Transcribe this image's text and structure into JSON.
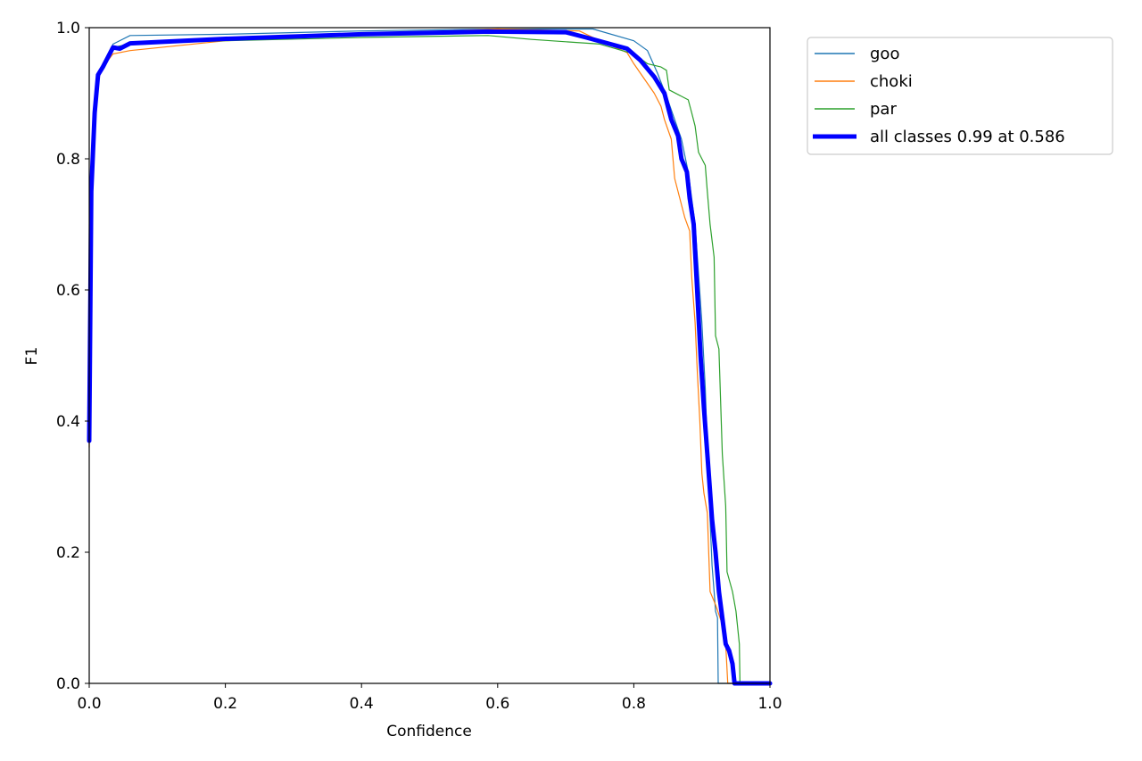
{
  "chart_data": {
    "type": "line",
    "title": "",
    "xlabel": "Confidence",
    "ylabel": "F1",
    "xlim": [
      0.0,
      1.0
    ],
    "ylim": [
      0.0,
      1.0
    ],
    "xticks": [
      "0.0",
      "0.2",
      "0.4",
      "0.6",
      "0.8",
      "1.0"
    ],
    "yticks": [
      "0.0",
      "0.2",
      "0.4",
      "0.6",
      "0.8",
      "1.0"
    ],
    "grid": false,
    "legend_position": "outside upper right",
    "series": [
      {
        "name": "goo",
        "color": "#1f77b4",
        "linewidth": 1.2,
        "points": [
          [
            0.0,
            0.37
          ],
          [
            0.003,
            0.75
          ],
          [
            0.008,
            0.87
          ],
          [
            0.013,
            0.93
          ],
          [
            0.02,
            0.945
          ],
          [
            0.035,
            0.975
          ],
          [
            0.06,
            0.988
          ],
          [
            0.2,
            0.99
          ],
          [
            0.4,
            0.995
          ],
          [
            0.6,
            0.998
          ],
          [
            0.74,
            0.998
          ],
          [
            0.8,
            0.98
          ],
          [
            0.82,
            0.965
          ],
          [
            0.835,
            0.93
          ],
          [
            0.85,
            0.89
          ],
          [
            0.87,
            0.83
          ],
          [
            0.88,
            0.78
          ],
          [
            0.89,
            0.7
          ],
          [
            0.9,
            0.55
          ],
          [
            0.905,
            0.45
          ],
          [
            0.91,
            0.3
          ],
          [
            0.915,
            0.18
          ],
          [
            0.918,
            0.14
          ],
          [
            0.92,
            0.11
          ],
          [
            0.923,
            0.1
          ],
          [
            0.924,
            0.0
          ],
          [
            1.0,
            0.0
          ]
        ]
      },
      {
        "name": "choki",
        "color": "#ff7f0e",
        "linewidth": 1.2,
        "points": [
          [
            0.0,
            0.36
          ],
          [
            0.003,
            0.74
          ],
          [
            0.008,
            0.86
          ],
          [
            0.013,
            0.92
          ],
          [
            0.02,
            0.94
          ],
          [
            0.035,
            0.96
          ],
          [
            0.06,
            0.965
          ],
          [
            0.2,
            0.98
          ],
          [
            0.4,
            0.99
          ],
          [
            0.6,
            0.998
          ],
          [
            0.72,
            0.995
          ],
          [
            0.74,
            0.985
          ],
          [
            0.79,
            0.962
          ],
          [
            0.8,
            0.945
          ],
          [
            0.81,
            0.93
          ],
          [
            0.82,
            0.915
          ],
          [
            0.83,
            0.9
          ],
          [
            0.84,
            0.88
          ],
          [
            0.845,
            0.86
          ],
          [
            0.855,
            0.83
          ],
          [
            0.86,
            0.77
          ],
          [
            0.87,
            0.73
          ],
          [
            0.875,
            0.71
          ],
          [
            0.882,
            0.69
          ],
          [
            0.885,
            0.62
          ],
          [
            0.89,
            0.55
          ],
          [
            0.893,
            0.48
          ],
          [
            0.897,
            0.4
          ],
          [
            0.9,
            0.32
          ],
          [
            0.903,
            0.29
          ],
          [
            0.908,
            0.26
          ],
          [
            0.912,
            0.14
          ],
          [
            0.92,
            0.12
          ],
          [
            0.93,
            0.09
          ],
          [
            0.935,
            0.06
          ],
          [
            0.938,
            0.0
          ],
          [
            1.0,
            0.0
          ]
        ]
      },
      {
        "name": "par",
        "color": "#2ca02c",
        "linewidth": 1.2,
        "points": [
          [
            0.0,
            0.37
          ],
          [
            0.003,
            0.75
          ],
          [
            0.008,
            0.87
          ],
          [
            0.013,
            0.93
          ],
          [
            0.02,
            0.945
          ],
          [
            0.035,
            0.97
          ],
          [
            0.06,
            0.975
          ],
          [
            0.2,
            0.98
          ],
          [
            0.4,
            0.985
          ],
          [
            0.586,
            0.988
          ],
          [
            0.65,
            0.982
          ],
          [
            0.75,
            0.975
          ],
          [
            0.8,
            0.96
          ],
          [
            0.82,
            0.945
          ],
          [
            0.84,
            0.94
          ],
          [
            0.848,
            0.935
          ],
          [
            0.852,
            0.905
          ],
          [
            0.88,
            0.89
          ],
          [
            0.885,
            0.87
          ],
          [
            0.89,
            0.85
          ],
          [
            0.895,
            0.81
          ],
          [
            0.905,
            0.79
          ],
          [
            0.908,
            0.75
          ],
          [
            0.912,
            0.7
          ],
          [
            0.918,
            0.65
          ],
          [
            0.92,
            0.53
          ],
          [
            0.925,
            0.51
          ],
          [
            0.93,
            0.35
          ],
          [
            0.935,
            0.27
          ],
          [
            0.937,
            0.17
          ],
          [
            0.945,
            0.14
          ],
          [
            0.95,
            0.11
          ],
          [
            0.955,
            0.06
          ],
          [
            0.956,
            0.0
          ],
          [
            1.0,
            0.0
          ]
        ]
      },
      {
        "name": "all classes 0.99 at 0.586",
        "color": "#0000ff",
        "linewidth": 5,
        "points": [
          [
            0.0,
            0.37
          ],
          [
            0.003,
            0.75
          ],
          [
            0.008,
            0.87
          ],
          [
            0.013,
            0.928
          ],
          [
            0.02,
            0.94
          ],
          [
            0.035,
            0.97
          ],
          [
            0.045,
            0.968
          ],
          [
            0.06,
            0.976
          ],
          [
            0.2,
            0.983
          ],
          [
            0.4,
            0.99
          ],
          [
            0.586,
            0.994
          ],
          [
            0.7,
            0.993
          ],
          [
            0.73,
            0.985
          ],
          [
            0.79,
            0.968
          ],
          [
            0.81,
            0.95
          ],
          [
            0.83,
            0.925
          ],
          [
            0.845,
            0.9
          ],
          [
            0.855,
            0.86
          ],
          [
            0.865,
            0.835
          ],
          [
            0.87,
            0.8
          ],
          [
            0.878,
            0.78
          ],
          [
            0.882,
            0.74
          ],
          [
            0.888,
            0.7
          ],
          [
            0.893,
            0.6
          ],
          [
            0.898,
            0.5
          ],
          [
            0.903,
            0.42
          ],
          [
            0.908,
            0.35
          ],
          [
            0.915,
            0.25
          ],
          [
            0.92,
            0.2
          ],
          [
            0.925,
            0.14
          ],
          [
            0.93,
            0.1
          ],
          [
            0.935,
            0.06
          ],
          [
            0.94,
            0.05
          ],
          [
            0.945,
            0.03
          ],
          [
            0.948,
            0.0
          ],
          [
            1.0,
            0.0
          ]
        ]
      }
    ]
  },
  "legend": {
    "items": [
      {
        "label": "goo",
        "color": "#1f77b4",
        "width": 1.5
      },
      {
        "label": "choki",
        "color": "#ff7f0e",
        "width": 1.5
      },
      {
        "label": "par",
        "color": "#2ca02c",
        "width": 1.5
      },
      {
        "label": "all classes 0.99 at 0.586",
        "color": "#0000ff",
        "width": 5
      }
    ]
  }
}
